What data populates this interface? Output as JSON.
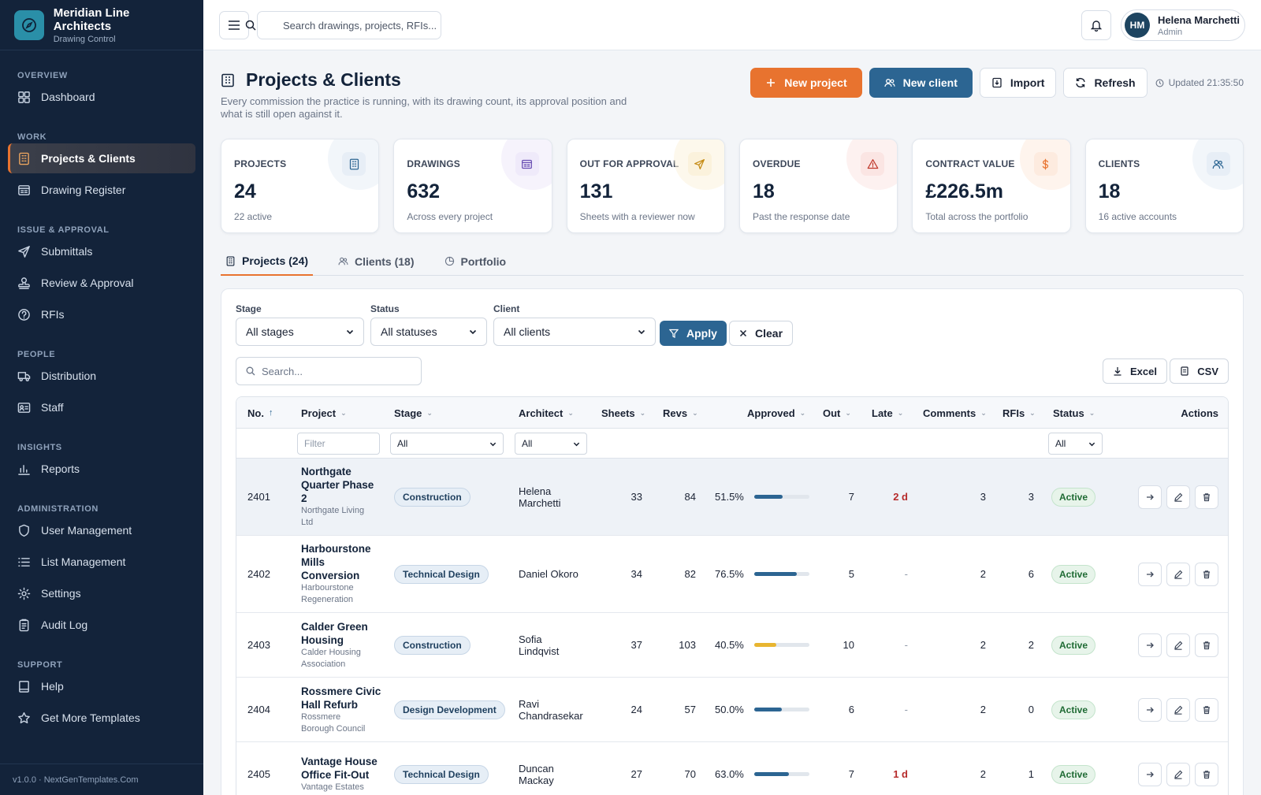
{
  "brand": {
    "name": "Meridian Line Architects",
    "subtitle": "Drawing Control"
  },
  "sidebar": {
    "sections": [
      {
        "title": "OVERVIEW",
        "items": [
          {
            "label": "Dashboard",
            "icon": "dashboard-icon"
          }
        ]
      },
      {
        "title": "WORK",
        "items": [
          {
            "label": "Projects & Clients",
            "icon": "building-icon",
            "active": true
          },
          {
            "label": "Drawing Register",
            "icon": "register-icon"
          }
        ]
      },
      {
        "title": "ISSUE & APPROVAL",
        "items": [
          {
            "label": "Submittals",
            "icon": "send-icon"
          },
          {
            "label": "Review & Approval",
            "icon": "stamp-icon"
          },
          {
            "label": "RFIs",
            "icon": "question-icon"
          }
        ]
      },
      {
        "title": "PEOPLE",
        "items": [
          {
            "label": "Distribution",
            "icon": "truck-icon"
          },
          {
            "label": "Staff",
            "icon": "id-card-icon"
          }
        ]
      },
      {
        "title": "INSIGHTS",
        "items": [
          {
            "label": "Reports",
            "icon": "bar-chart-icon"
          }
        ]
      },
      {
        "title": "ADMINISTRATION",
        "items": [
          {
            "label": "User Management",
            "icon": "shield-icon"
          },
          {
            "label": "List Management",
            "icon": "list-icon"
          },
          {
            "label": "Settings",
            "icon": "gear-icon"
          },
          {
            "label": "Audit Log",
            "icon": "clipboard-icon"
          }
        ]
      },
      {
        "title": "SUPPORT",
        "items": [
          {
            "label": "Help",
            "icon": "book-icon"
          },
          {
            "label": "Get More Templates",
            "icon": "star-icon"
          }
        ]
      }
    ],
    "footer": "v1.0.0 · NextGenTemplates.Com"
  },
  "topbar": {
    "search_placeholder": "Search drawings, projects, RFIs...",
    "user": {
      "initials": "HM",
      "name": "Helena Marchetti",
      "role": "Admin"
    }
  },
  "page": {
    "title": "Projects & Clients",
    "subtitle": "Every commission the practice is running, with its drawing count, its approval position and what is still open against it.",
    "buttons": {
      "new_project": "New project",
      "new_client": "New client",
      "import": "Import",
      "refresh": "Refresh"
    },
    "updated": "Updated 21:35:50"
  },
  "stats": [
    {
      "label": "PROJECTS",
      "value": "24",
      "note": "22 active",
      "icon": "building-icon",
      "color": "#2c6592",
      "bg": "#e7eef6"
    },
    {
      "label": "DRAWINGS",
      "value": "632",
      "note": "Across every project",
      "icon": "register-icon",
      "color": "#6a4fb3",
      "bg": "#efeafa"
    },
    {
      "label": "OUT FOR APPROVAL",
      "value": "131",
      "note": "Sheets with a reviewer now",
      "icon": "send-icon",
      "color": "#c58a12",
      "bg": "#fbf2dc"
    },
    {
      "label": "OVERDUE",
      "value": "18",
      "note": "Past the response date",
      "icon": "warning-icon",
      "color": "#c0392b",
      "bg": "#fbe5e3"
    },
    {
      "label": "CONTRACT VALUE",
      "value": "£226.5m",
      "note": "Total across the portfolio",
      "icon": "dollar-icon",
      "color": "#e8732f",
      "bg": "#fdebdf"
    },
    {
      "label": "CLIENTS",
      "value": "18",
      "note": "16 active accounts",
      "icon": "users-icon",
      "color": "#2c6592",
      "bg": "#e7eef6"
    }
  ],
  "tabs": [
    {
      "label": "Projects (24)",
      "icon": "building-icon",
      "active": true
    },
    {
      "label": "Clients (18)",
      "icon": "users-icon"
    },
    {
      "label": "Portfolio",
      "icon": "pie-icon"
    }
  ],
  "filters": {
    "stage_label": "Stage",
    "stage_value": "All stages",
    "status_label": "Status",
    "status_value": "All statuses",
    "client_label": "Client",
    "client_value": "All clients",
    "apply": "Apply",
    "clear": "Clear",
    "search_placeholder": "Search...",
    "excel": "Excel",
    "csv": "CSV"
  },
  "table": {
    "columns": {
      "no": "No.",
      "project": "Project",
      "stage": "Stage",
      "architect": "Architect",
      "sheets": "Sheets",
      "revs": "Revs",
      "approved": "Approved",
      "out": "Out",
      "late": "Late",
      "comments": "Comments",
      "rfis": "RFIs",
      "status": "Status",
      "actions": "Actions"
    },
    "filter_row": {
      "project_placeholder": "Filter",
      "stage": "All",
      "architect": "All",
      "status": "All"
    },
    "rows": [
      {
        "no": "2401",
        "name": [
          "Northgate",
          "Quarter Phase",
          "2"
        ],
        "client": [
          "Northgate Living",
          "Ltd"
        ],
        "stage": "Construction",
        "architect": [
          "Helena",
          "Marchetti"
        ],
        "sheets": "33",
        "revs": "84",
        "approved_text": "51.5%",
        "approved": 0.515,
        "bar_color": "#2c6592",
        "out": "7",
        "late": "2 d",
        "comments": "3",
        "rfis": "3",
        "status": "Active"
      },
      {
        "no": "2402",
        "name": [
          "Harbourstone",
          "Mills",
          "Conversion"
        ],
        "client": [
          "Harbourstone",
          "Regeneration"
        ],
        "stage": "Technical Design",
        "architect": [
          "Daniel Okoro"
        ],
        "sheets": "34",
        "revs": "82",
        "approved_text": "76.5%",
        "approved": 0.765,
        "bar_color": "#2c6592",
        "out": "5",
        "late": "-",
        "comments": "2",
        "rfis": "6",
        "status": "Active"
      },
      {
        "no": "2403",
        "name": [
          "Calder Green",
          "Housing"
        ],
        "client": [
          "Calder Housing",
          "Association"
        ],
        "stage": "Construction",
        "architect": [
          "Sofia",
          "Lindqvist"
        ],
        "sheets": "37",
        "revs": "103",
        "approved_text": "40.5%",
        "approved": 0.405,
        "bar_color": "#e8b530",
        "out": "10",
        "late": "-",
        "comments": "2",
        "rfis": "2",
        "status": "Active"
      },
      {
        "no": "2404",
        "name": [
          "Rossmere Civic",
          "Hall Refurb"
        ],
        "client": [
          "Rossmere",
          "Borough Council"
        ],
        "stage": "Design Development",
        "architect": [
          "Ravi",
          "Chandrasekar"
        ],
        "sheets": "24",
        "revs": "57",
        "approved_text": "50.0%",
        "approved": 0.5,
        "bar_color": "#2c6592",
        "out": "6",
        "late": "-",
        "comments": "2",
        "rfis": "0",
        "status": "Active"
      },
      {
        "no": "2405",
        "name": [
          "Vantage House",
          "Office Fit-Out"
        ],
        "client": [
          "Vantage Estates"
        ],
        "stage": "Technical Design",
        "architect": [
          "Duncan",
          "Mackay"
        ],
        "sheets": "27",
        "revs": "70",
        "approved_text": "63.0%",
        "approved": 0.63,
        "bar_color": "#2c6592",
        "out": "7",
        "late": "1 d",
        "comments": "2",
        "rfis": "1",
        "status": "Active"
      }
    ]
  }
}
